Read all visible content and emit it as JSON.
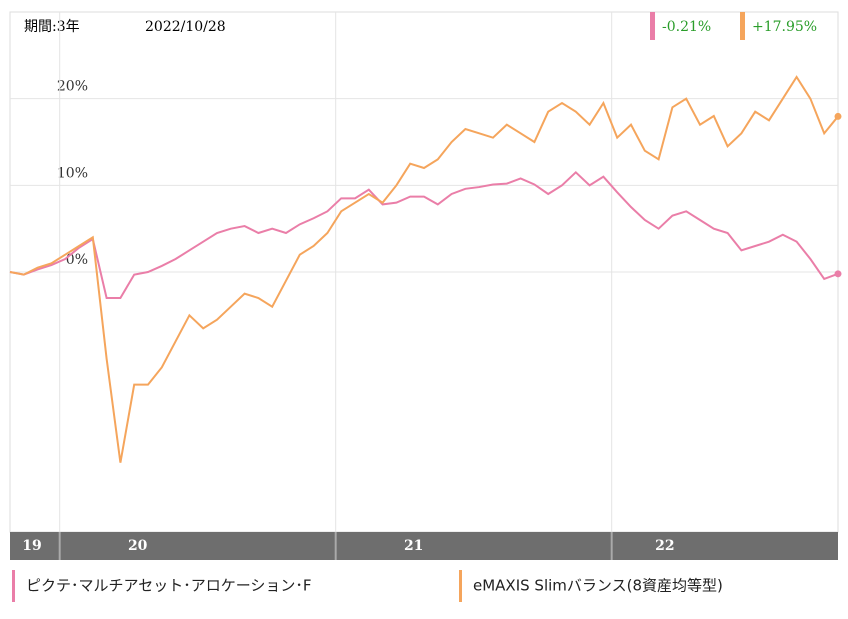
{
  "chart_data": {
    "type": "line",
    "period": "期間:3年",
    "date": "2022/10/28",
    "x": [
      2019.82,
      2019.87,
      2019.92,
      2019.97,
      2020.02,
      2020.07,
      2020.12,
      2020.17,
      2020.22,
      2020.27,
      2020.32,
      2020.37,
      2020.42,
      2020.47,
      2020.52,
      2020.57,
      2020.62,
      2020.67,
      2020.72,
      2020.77,
      2020.82,
      2020.87,
      2020.92,
      2020.97,
      2021.02,
      2021.07,
      2021.12,
      2021.17,
      2021.22,
      2021.27,
      2021.32,
      2021.37,
      2021.42,
      2021.47,
      2021.52,
      2021.57,
      2021.62,
      2021.67,
      2021.72,
      2021.77,
      2021.82,
      2021.87,
      2021.92,
      2021.97,
      2022.02,
      2022.07,
      2022.12,
      2022.17,
      2022.22,
      2022.27,
      2022.32,
      2022.37,
      2022.42,
      2022.47,
      2022.52,
      2022.57,
      2022.62,
      2022.67,
      2022.72,
      2022.77,
      2022.82
    ],
    "xlim": [
      2019.82,
      2022.82
    ],
    "xticks": [
      2020,
      2021,
      2022
    ],
    "year_labels": [
      "19",
      "20",
      "21",
      "22"
    ],
    "ylim": [
      -30,
      30
    ],
    "yticks": [
      {
        "value": 0,
        "label": "0%"
      },
      {
        "value": 10,
        "label": "10%"
      },
      {
        "value": 20,
        "label": "20%"
      }
    ],
    "grid": true,
    "series": [
      {
        "name": "ピクテ･マルチアセット･アロケーション･F",
        "color": "#ea7ea8",
        "last_label": "-0.21%",
        "values": [
          0,
          -0.3,
          0.3,
          0.8,
          1.5,
          2.8,
          3.8,
          -3,
          -3,
          -0.3,
          0,
          0.7,
          1.5,
          2.5,
          3.5,
          4.5,
          5,
          5.3,
          4.5,
          5,
          4.5,
          5.5,
          6.2,
          7,
          8.5,
          8.5,
          9.5,
          7.8,
          8,
          8.7,
          8.7,
          7.8,
          9,
          9.6,
          9.8,
          10.1,
          10.2,
          10.8,
          10.1,
          9,
          10,
          11.5,
          10,
          11,
          9.2,
          7.5,
          6,
          5,
          6.5,
          7,
          6,
          5,
          4.5,
          2.5,
          3,
          3.5,
          4.3,
          3.5,
          1.5,
          -0.8,
          -0.21
        ]
      },
      {
        "name": "eMAXIS Slimバランス(8資産均等型)",
        "color": "#f5a55c",
        "last_label": "+17.95%",
        "values": [
          0,
          -0.3,
          0.5,
          1,
          2,
          3,
          4,
          -10,
          -22,
          -13,
          -13,
          -11,
          -8,
          -5,
          -6.5,
          -5.5,
          -4,
          -2.5,
          -3,
          -4,
          -1,
          2,
          3,
          4.5,
          7,
          8,
          9,
          8,
          10,
          12.5,
          12,
          13,
          15,
          16.5,
          16,
          15.5,
          17,
          16,
          15,
          18.5,
          19.5,
          18.5,
          17,
          19.5,
          15.5,
          17,
          14,
          13,
          19,
          20,
          17,
          18,
          14.5,
          16,
          18.5,
          17.5,
          20,
          22.5,
          20,
          16,
          17.95
        ]
      }
    ]
  }
}
